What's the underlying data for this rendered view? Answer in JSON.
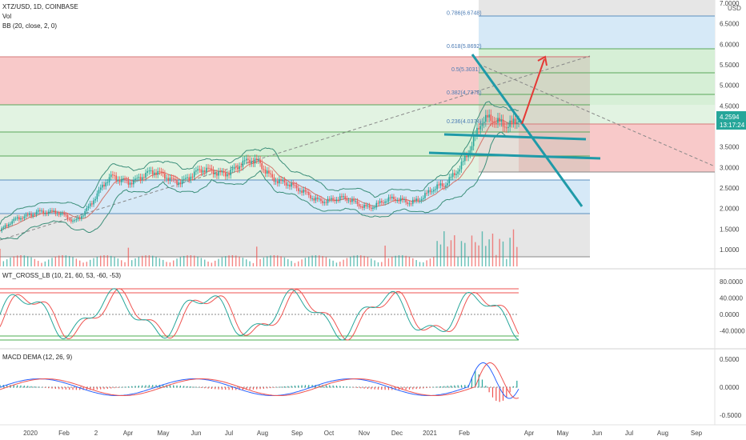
{
  "header": {
    "symbol_line": "XTZ/USD, 1D, COINBASE",
    "vol_label": "Vol",
    "bb_label": "BB (20, close, 2, 0)"
  },
  "price_axis": {
    "ticks": [
      "7.0000",
      "6.5000",
      "6.0000",
      "5.5000",
      "5.0000",
      "4.5000",
      "4.0000",
      "3.5000",
      "3.0000",
      "2.5000",
      "2.0000",
      "1.5000",
      "1.0000"
    ],
    "tick_values": [
      7.0,
      6.5,
      6.0,
      5.5,
      5.0,
      4.5,
      4.0,
      3.5,
      3.0,
      2.5,
      2.0,
      1.5,
      1.0
    ],
    "currency": "USD",
    "last_price": "4.2594",
    "countdown": "13:17:24"
  },
  "fib": {
    "levels": [
      {
        "label": "0.786(6.6748)",
        "value": 6.6748
      },
      {
        "label": "0.618(5.8692)",
        "value": 5.8692
      },
      {
        "label": "0.5(5.3031)",
        "value": 5.3031
      },
      {
        "label": "0.382(4.7378)",
        "value": 4.7378
      },
      {
        "label": "0.236(4.0374)",
        "value": 4.0374
      }
    ]
  },
  "wt_panel": {
    "title": "WT_CROSS_LB (10, 21, 60, 53, -60, -53)",
    "ticks": [
      "80.0000",
      "40.0000",
      "0.0000",
      "-40.0000"
    ],
    "tick_values": [
      80,
      40,
      0,
      -40
    ]
  },
  "macd_panel": {
    "title": "MACD DEMA (12, 26, 9)",
    "ticks": [
      "0.5000",
      "0.0000",
      "-0.5000"
    ],
    "tick_values": [
      0.5,
      0,
      -0.5
    ]
  },
  "time_axis": {
    "labels": [
      "2020",
      "Feb",
      "2",
      "Apr",
      "May",
      "Jun",
      "Jul",
      "Aug",
      "Sep",
      "Oct",
      "Nov",
      "Dec",
      "2021",
      "Feb",
      "Apr",
      "May",
      "Jun",
      "Jul",
      "Aug",
      "Sep"
    ]
  },
  "colors": {
    "up": "#26a69a",
    "down": "#ef5350",
    "teal_line": "#1f9aa8",
    "arrow": "#e53935",
    "band_red": "#f8c9c9",
    "band_green": "#d6efd6",
    "band_blue": "#d6e9f7",
    "band_gray": "#e6e6e6",
    "price_tag": "#26a69a"
  },
  "chart_data": {
    "type": "line",
    "title": "XTZ/USD, 1D, COINBASE",
    "x": [
      "2020-01",
      "2020-02",
      "2020-03",
      "2020-04",
      "2020-05",
      "2020-06",
      "2020-07",
      "2020-08",
      "2020-09",
      "2020-10",
      "2020-11",
      "2020-12",
      "2021-01",
      "2021-02",
      "2021-03"
    ],
    "series": [
      {
        "values": [
          1.45,
          2.0,
          1.7,
          2.7,
          2.8,
          2.75,
          2.95,
          3.1,
          2.4,
          2.2,
          2.1,
          2.2,
          2.5,
          4.0,
          4.26
        ]
      }
    ],
    "ylim": [
      0.8,
      7.0
    ]
  }
}
